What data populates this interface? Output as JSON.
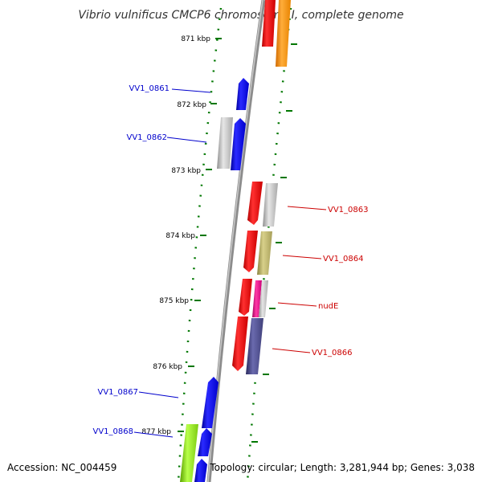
{
  "title": "Vibrio vulnificus CMCP6 chromosome I, complete genome",
  "footer": {
    "accession": "Accession: NC_004459",
    "summary": "Topology: circular; Length: 3,281,944 bp; Genes: 3,038"
  },
  "ruler": [
    "871 kbp",
    "872 kbp",
    "873 kbp",
    "874 kbp",
    "875 kbp",
    "876 kbp",
    "877 kbp"
  ],
  "labels": {
    "vv1_0861": "VV1_0861",
    "vv1_0862": "VV1_0862",
    "vv1_0863": "VV1_0863",
    "vv1_0864": "VV1_0864",
    "nude": "nudE",
    "vv1_0866": "VV1_0866",
    "vv1_0867": "VV1_0867",
    "vv1_0868": "VV1_0868"
  },
  "colors": {
    "forward_label": "#cc0000",
    "reverse_label": "#0000cc",
    "ruler_ticks": "#007700",
    "backbone": "#888888"
  }
}
